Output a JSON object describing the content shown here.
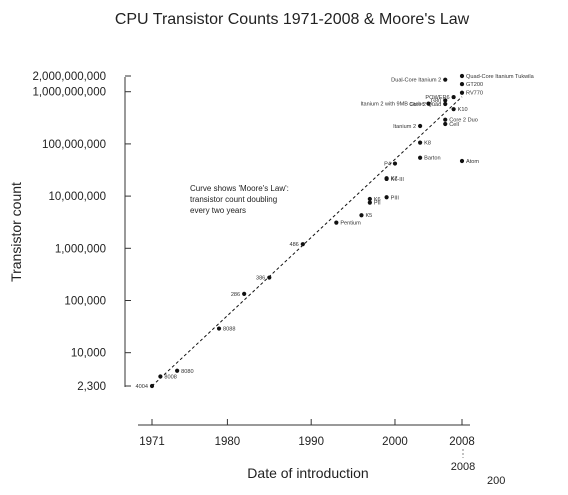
{
  "chart_data": {
    "type": "scatter",
    "title": "CPU Transistor Counts 1971-2008 & Moore's Law",
    "xlabel": "Date of introduction",
    "ylabel": "Transistor count",
    "x_scale": "linear",
    "y_scale": "log",
    "xlim": [
      1971,
      2008
    ],
    "ylim": [
      2300,
      2000000000
    ],
    "x_ticks": [
      1971,
      1980,
      1990,
      2000,
      2008
    ],
    "x_tick_labels": [
      "1971",
      "1980",
      "1990",
      "2000",
      "2008"
    ],
    "y_ticks": [
      2300,
      10000,
      100000,
      1000000,
      10000000,
      100000000,
      1000000000,
      2000000000
    ],
    "y_tick_labels": [
      "2,300",
      "10,000",
      "100,000",
      "1,000,000",
      "10,000,000",
      "100,000,000",
      "1,000,000,000",
      "2,000,000,000"
    ],
    "grid": false,
    "trend_line": {
      "name": "Moore's Law",
      "x": [
        1971,
        2008
      ],
      "y": [
        2300,
        800000000
      ]
    },
    "annotation": [
      "Curve shows 'Moore's Law':",
      "transistor count doubling",
      "every two years"
    ],
    "extra_labels": [
      "2008",
      "200"
    ],
    "points": [
      {
        "label": "4004",
        "x": 1971,
        "y": 2300,
        "label_side": "left"
      },
      {
        "label": "8008",
        "x": 1972,
        "y": 3500,
        "label_side": "right"
      },
      {
        "label": "8080",
        "x": 1974,
        "y": 4500,
        "label_side": "right"
      },
      {
        "label": "8088",
        "x": 1979,
        "y": 29000,
        "label_side": "right"
      },
      {
        "label": "286",
        "x": 1982,
        "y": 134000,
        "label_side": "left"
      },
      {
        "label": "386",
        "x": 1985,
        "y": 275000,
        "label_side": "left"
      },
      {
        "label": "486",
        "x": 1989,
        "y": 1200000,
        "label_side": "left"
      },
      {
        "label": "Pentium",
        "x": 1993,
        "y": 3100000,
        "label_side": "right"
      },
      {
        "label": "K5",
        "x": 1996,
        "y": 4300000,
        "label_side": "right"
      },
      {
        "label": "K6",
        "x": 1997,
        "y": 8800000,
        "label_side": "right"
      },
      {
        "label": "PII",
        "x": 1997,
        "y": 7500000,
        "label_side": "right"
      },
      {
        "label": "PIII",
        "x": 1999,
        "y": 9500000,
        "label_side": "right"
      },
      {
        "label": "K6-III",
        "x": 1999,
        "y": 21300000,
        "label_side": "right"
      },
      {
        "label": "K7",
        "x": 1999,
        "y": 22000000,
        "label_side": "right"
      },
      {
        "label": "P4",
        "x": 2000,
        "y": 42000000,
        "label_side": "left"
      },
      {
        "label": "Barton",
        "x": 2003,
        "y": 54300000,
        "label_side": "right"
      },
      {
        "label": "K8",
        "x": 2003,
        "y": 105900000,
        "label_side": "right"
      },
      {
        "label": "Itanium 2",
        "x": 2003,
        "y": 220000000,
        "label_side": "left"
      },
      {
        "label": "Atom",
        "x": 2008,
        "y": 47000000,
        "label_side": "right"
      },
      {
        "label": "Core 2 Duo",
        "x": 2006,
        "y": 291000000,
        "label_side": "right"
      },
      {
        "label": "Cell",
        "x": 2006,
        "y": 241000000,
        "label_side": "right"
      },
      {
        "label": "Core 2 Quad",
        "x": 2006,
        "y": 582000000,
        "label_side": "left"
      },
      {
        "label": "K10",
        "x": 2007,
        "y": 463000000,
        "label_side": "right"
      },
      {
        "label": "G80",
        "x": 2006,
        "y": 681000000,
        "label_side": "left"
      },
      {
        "label": "POWER6",
        "x": 2007,
        "y": 789000000,
        "label_side": "left"
      },
      {
        "label": "Itanium 2 with 9MB cache",
        "x": 2004,
        "y": 592000000,
        "label_side": "left"
      },
      {
        "label": "RV770",
        "x": 2008,
        "y": 956000000,
        "label_side": "right"
      },
      {
        "label": "GT200",
        "x": 2008,
        "y": 1400000000,
        "label_side": "right"
      },
      {
        "label": "Dual-Core Itanium 2",
        "x": 2006,
        "y": 1700000000,
        "label_side": "left"
      },
      {
        "label": "Quad-Core Itanium Tukwila",
        "x": 2008,
        "y": 2000000000,
        "label_side": "right"
      }
    ]
  }
}
